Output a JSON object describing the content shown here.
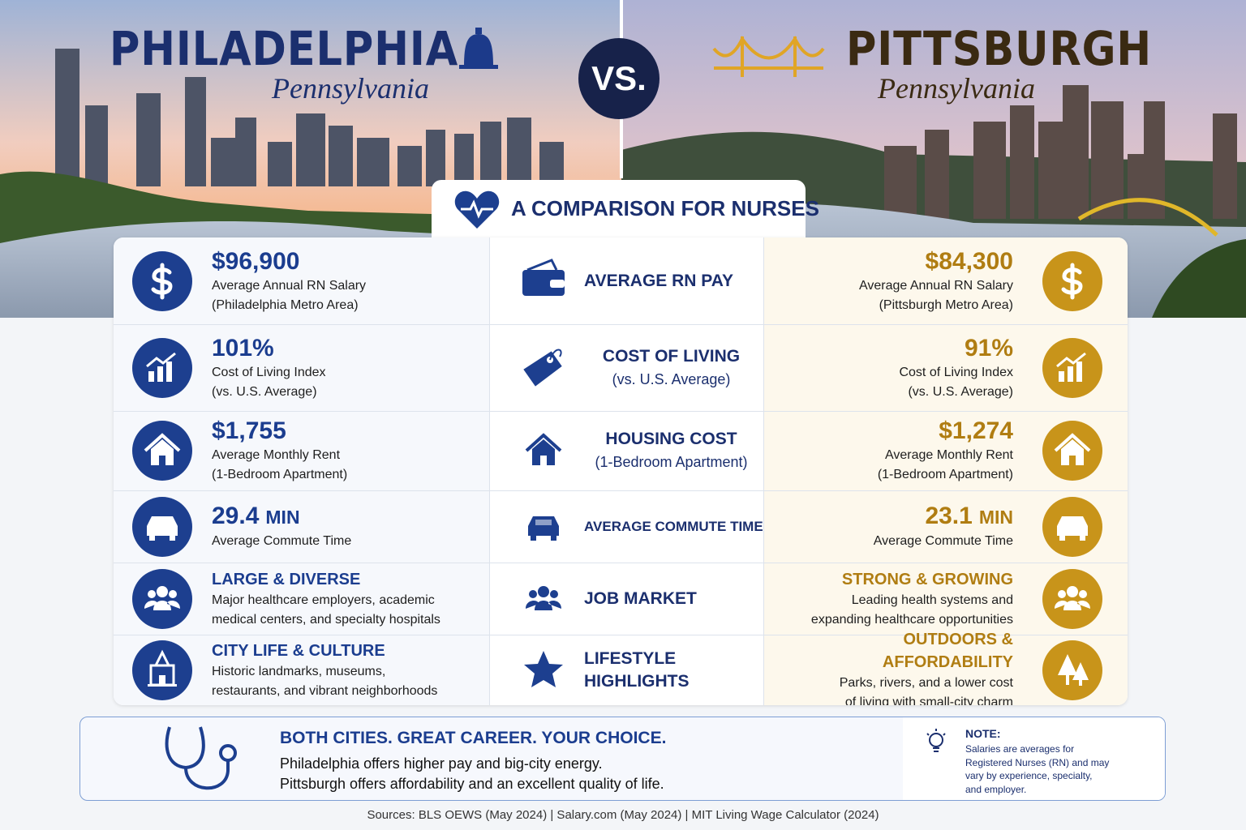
{
  "header": {
    "left_city": "PHILADELPHIA",
    "left_state": "Pennsylvania",
    "vs": "VS.",
    "right_city": "PITTSBURGH",
    "right_state": "Pennsylvania",
    "banner": "A COMPARISON FOR NURSES"
  },
  "rows": [
    {
      "left": {
        "value": "$96,900",
        "lines": [
          "Average Annual RN Salary",
          "(Philadelphia Metro Area)"
        ]
      },
      "middle": {
        "title": [
          "AVERAGE RN PAY"
        ]
      },
      "right": {
        "value": "$84,300",
        "lines": [
          "Average Annual RN Salary",
          "(Pittsburgh Metro Area)"
        ]
      }
    },
    {
      "left": {
        "value": "101%",
        "lines": [
          "Cost of Living Index",
          "(vs. U.S. Average)"
        ]
      },
      "middle": {
        "title": [
          "COST OF LIVING"
        ],
        "sub": "(vs. U.S. Average)"
      },
      "right": {
        "value": "91%",
        "lines": [
          "Cost of Living Index",
          "(vs. U.S. Average)"
        ]
      }
    },
    {
      "left": {
        "value": "$1,755",
        "lines": [
          "Average Monthly Rent",
          "(1-Bedroom Apartment)"
        ]
      },
      "middle": {
        "title": [
          "HOUSING COST"
        ],
        "sub": "(1-Bedroom Apartment)"
      },
      "right": {
        "value": "$1,274",
        "lines": [
          "Average Monthly Rent",
          "(1-Bedroom Apartment)"
        ]
      }
    },
    {
      "left": {
        "value": "29.4",
        "unit": "MIN",
        "lines": [
          "Average Commute Time"
        ]
      },
      "middle": {
        "title": [
          "AVERAGE COMMUTE TIME"
        ]
      },
      "right": {
        "value": "23.1",
        "unit": "MIN",
        "lines": [
          "Average Commute Time"
        ]
      }
    },
    {
      "left": {
        "heading": "LARGE & DIVERSE",
        "lines": [
          "Major healthcare employers, academic",
          "medical centers, and specialty hospitals"
        ]
      },
      "middle": {
        "title": [
          "JOB MARKET"
        ]
      },
      "right": {
        "heading": "STRONG & GROWING",
        "lines": [
          "Leading health systems and",
          "expanding healthcare opportunities"
        ]
      }
    },
    {
      "left": {
        "heading": "CITY LIFE & CULTURE",
        "lines": [
          "Historic landmarks, museums,",
          "restaurants, and vibrant neighborhoods"
        ]
      },
      "middle": {
        "title": [
          "LIFESTYLE",
          "HIGHLIGHTS"
        ]
      },
      "right": {
        "heading": "OUTDOORS & AFFORDABILITY",
        "lines": [
          "Parks, rivers, and a lower cost",
          "of living with small-city charm"
        ]
      }
    }
  ],
  "footer": {
    "title": "BOTH CITIES. GREAT CAREER. YOUR CHOICE.",
    "lines": [
      "Philadelphia offers higher pay and big-city energy.",
      "Pittsburgh offers affordability and an excellent quality of life."
    ],
    "note_title": "NOTE:",
    "note_lines": [
      "Salaries are averages for",
      "Registered Nurses (RN) and may",
      "vary by experience, specialty,",
      "and employer."
    ],
    "sources": "Sources: BLS OEWS (May 2024) | Salary.com (May 2024) | MIT Living Wage Calculator (2024)"
  }
}
